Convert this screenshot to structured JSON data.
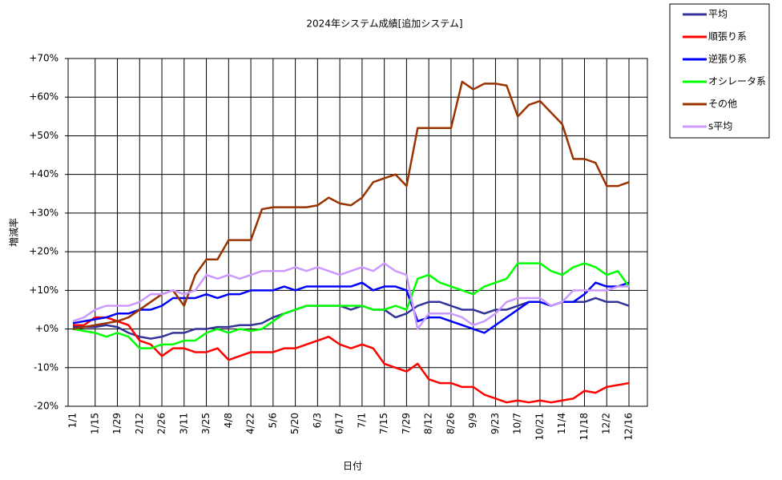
{
  "chart_data": {
    "type": "line",
    "title": "2024年システム成績[追加システム]",
    "x_label": "日付",
    "y_label": "増減率",
    "categories": [
      "1/1",
      null,
      "1/15",
      null,
      "1/29",
      null,
      "2/12",
      null,
      "2/26",
      null,
      "3/11",
      null,
      "3/25",
      null,
      "4/8",
      null,
      "4/22",
      null,
      "5/6",
      null,
      "5/20",
      null,
      "6/3",
      null,
      "6/17",
      null,
      "7/1",
      null,
      "7/15",
      null,
      "7/29",
      null,
      "8/12",
      null,
      "8/26",
      null,
      "9/9",
      null,
      "9/23",
      null,
      "10/7",
      null,
      "10/21",
      null,
      "11/4",
      null,
      "11/18",
      null,
      "12/2",
      null,
      "12/16"
    ],
    "ylim": [
      -20,
      70
    ],
    "yticks": [
      {
        "value": -20,
        "label": "-20%"
      },
      {
        "value": -10,
        "label": "-10%"
      },
      {
        "value": 0,
        "label": "+0%"
      },
      {
        "value": 10,
        "label": "+10%"
      },
      {
        "value": 20,
        "label": "+20%"
      },
      {
        "value": 30,
        "label": "+30%"
      },
      {
        "value": 40,
        "label": "+40%"
      },
      {
        "value": 50,
        "label": "+50%"
      },
      {
        "value": 60,
        "label": "+60%"
      },
      {
        "value": 70,
        "label": "+70%"
      }
    ],
    "grid": true,
    "legend": "outside-right",
    "series": [
      {
        "name": "平均",
        "color": "#333399",
        "values": [
          0.5,
          0.5,
          0.5,
          1,
          0.5,
          -1,
          -2,
          -2.5,
          -2,
          -1,
          -1,
          0,
          0,
          0.5,
          0.5,
          1,
          1,
          1.5,
          3,
          4,
          5,
          6,
          6,
          6,
          6,
          5,
          6,
          5,
          5,
          3,
          4,
          6,
          7,
          7,
          6,
          5,
          5,
          4,
          5,
          5,
          6,
          7,
          7,
          6,
          7,
          7,
          7,
          8,
          7,
          7,
          6
        ]
      },
      {
        "name": "順張り系",
        "color": "#ff0000",
        "values": [
          1,
          1,
          3,
          3,
          2,
          1,
          -3,
          -4,
          -7,
          -5,
          -5,
          -6,
          -6,
          -5,
          -8,
          -7,
          -6,
          -6,
          -6,
          -5,
          -5,
          -4,
          -3,
          -2,
          -4,
          -5,
          -4,
          -5,
          -9,
          -10,
          -11,
          -9,
          -13,
          -14,
          -14,
          -15,
          -15,
          -17,
          -18,
          -19,
          -18.5,
          -19,
          -18.5,
          -19,
          -18.5,
          -18,
          -16,
          -16.5,
          -15,
          -14.5,
          -14
        ]
      },
      {
        "name": "逆張り系",
        "color": "#0000ff",
        "values": [
          1.5,
          2,
          2.5,
          3,
          4,
          4,
          5,
          5,
          6,
          8,
          8,
          8,
          9,
          8,
          9,
          9,
          10,
          10,
          10,
          11,
          10,
          11,
          11,
          11,
          11,
          11,
          12,
          10,
          11,
          11,
          10,
          2,
          3,
          3,
          2,
          1,
          0,
          -1,
          1,
          3,
          5,
          7,
          7,
          6,
          7,
          7,
          9,
          12,
          11,
          11,
          12
        ]
      },
      {
        "name": "オシレータ系",
        "color": "#00ff00",
        "values": [
          0,
          -0.5,
          -1,
          -2,
          -1,
          -2,
          -5,
          -5,
          -4,
          -4,
          -3,
          -3,
          -1,
          0,
          -1,
          0,
          -0.5,
          0,
          2,
          4,
          5,
          6,
          6,
          6,
          6,
          6,
          6,
          5,
          5,
          6,
          5,
          13,
          14,
          12,
          11,
          10,
          9,
          11,
          12,
          13,
          17,
          17,
          17,
          15,
          14,
          16,
          17,
          16,
          14,
          15,
          11
        ]
      },
      {
        "name": "その他",
        "color": "#993300",
        "values": [
          0,
          0.5,
          1,
          1.5,
          2,
          3,
          5,
          7,
          9,
          10,
          6,
          14,
          18,
          18,
          23,
          23,
          23,
          31,
          31.5,
          31.5,
          31.5,
          31.5,
          32,
          34,
          32.5,
          32,
          34,
          38,
          39,
          40,
          37,
          52,
          52,
          52,
          52,
          64,
          62,
          63.5,
          63.5,
          63,
          55,
          58,
          59,
          56,
          53,
          44,
          44,
          43,
          37,
          37,
          38
        ]
      },
      {
        "name": "s平均",
        "color": "#cc99ff",
        "values": [
          2,
          3,
          5,
          6,
          6,
          6,
          7,
          9,
          9,
          10,
          9,
          10,
          14,
          13,
          14,
          13,
          14,
          15,
          15,
          15,
          16,
          15,
          16,
          15,
          14,
          15,
          16,
          15,
          17,
          15,
          14,
          0,
          4,
          4,
          4,
          3,
          1,
          2,
          4,
          7,
          8,
          8,
          8,
          6,
          7,
          10,
          10,
          10,
          10,
          11,
          11
        ]
      }
    ]
  }
}
